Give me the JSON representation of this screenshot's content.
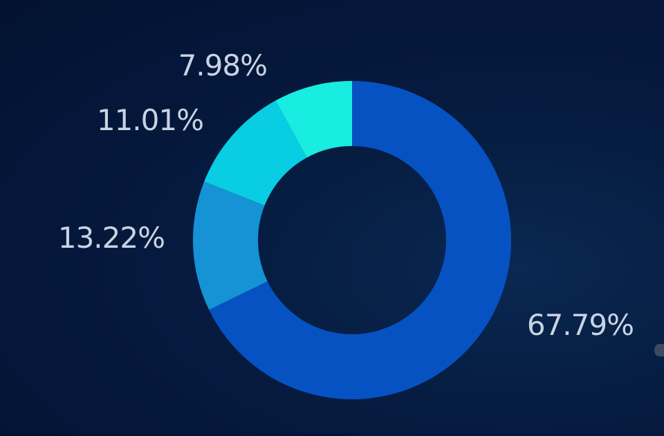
{
  "chart_data": {
    "type": "pie",
    "donut": true,
    "title": "",
    "start_angle_deg": 0,
    "direction": "clockwise",
    "slices": [
      {
        "value": 67.79,
        "label": "67.79%",
        "color": "#0752c2"
      },
      {
        "value": 13.22,
        "label": "13.22%",
        "color": "#1593d4"
      },
      {
        "value": 11.01,
        "label": "11.01%",
        "color": "#09cde2"
      },
      {
        "value": 7.98,
        "label": "7.98%",
        "color": "#19ece0"
      }
    ],
    "legend": "none",
    "background": "#04163a"
  }
}
